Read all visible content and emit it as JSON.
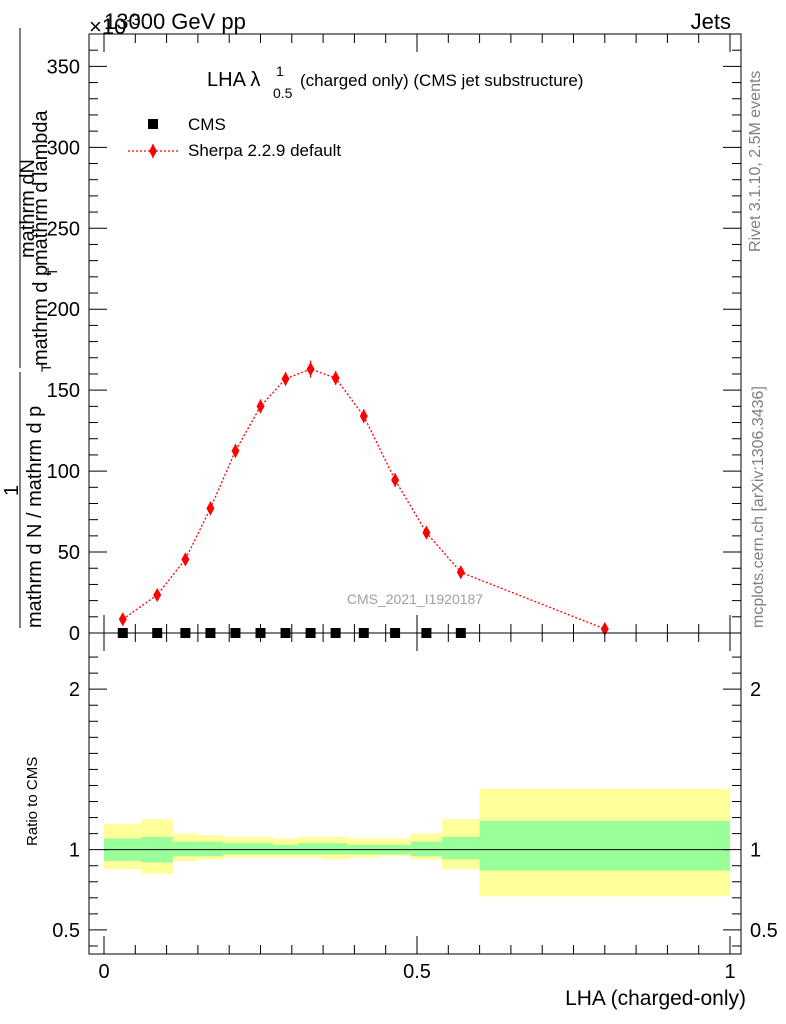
{
  "header": {
    "left": "13000 GeV pp",
    "right": "Jets"
  },
  "side_labels": {
    "rivet": "Rivet 3.1.10,  2.5M events",
    "mcplots": "mcplots.cern.ch [arXiv:1306.3436]"
  },
  "watermark": "CMS_2021_I1920187",
  "colors": {
    "mc": "#ff0000",
    "data": "#000000",
    "band_inner": "#99ff99",
    "band_outer": "#ffff99"
  },
  "chart_data": [
    {
      "type": "line",
      "title_main": "LHA λ",
      "title_sup": "1",
      "title_sub": "0.5",
      "title_rest": "(charged only) (CMS jet substructure)",
      "ylabel_top": "mathrm dN",
      "ylabel_top2": "mathrm d p",
      "ylabel_top_sub": "T",
      "ylabel_top3": " mathrm d lambda",
      "ylabel_one": "1",
      "ylabel_bottom": "mathrm d N / mathrm d p",
      "ylabel_bottom_sub": "T",
      "y_exponent": "×10",
      "y_exponent_power": "-3",
      "ylim": [
        0,
        0.37
      ],
      "yticks": [
        {
          "v": 0,
          "label": "0"
        },
        {
          "v": 0.05,
          "label": "50"
        },
        {
          "v": 0.1,
          "label": "100"
        },
        {
          "v": 0.15,
          "label": "150"
        },
        {
          "v": 0.2,
          "label": "200"
        },
        {
          "v": 0.25,
          "label": "250"
        },
        {
          "v": 0.3,
          "label": "300"
        },
        {
          "v": 0.35,
          "label": "350"
        }
      ],
      "xlim": [
        0,
        1
      ],
      "legend_position": "top-left",
      "series": [
        {
          "name": "CMS",
          "marker": "square",
          "x": [
            0.03,
            0.085,
            0.13,
            0.17,
            0.21,
            0.25,
            0.29,
            0.33,
            0.37,
            0.415,
            0.465,
            0.515,
            0.57
          ],
          "y": [
            0,
            0,
            0,
            0,
            0,
            0,
            0,
            0,
            0,
            0,
            0,
            0,
            0
          ]
        },
        {
          "name": "Sherpa 2.2.9 default",
          "marker": "diamond",
          "x": [
            0.03,
            0.085,
            0.13,
            0.17,
            0.21,
            0.25,
            0.29,
            0.33,
            0.37,
            0.415,
            0.465,
            0.515,
            0.57,
            0.8
          ],
          "y": [
            0.0085,
            0.0235,
            0.0455,
            0.077,
            0.1125,
            0.14,
            0.157,
            0.163,
            0.1575,
            0.134,
            0.0945,
            0.062,
            0.0375,
            0.0025
          ],
          "err": [
            0.002,
            0.002,
            0.002,
            0.003,
            0.003,
            0.003,
            0.003,
            0.004,
            0.003,
            0.003,
            0.003,
            0.002,
            0.002,
            0.001
          ]
        }
      ]
    },
    {
      "type": "area",
      "ylabel": "Ratio to CMS",
      "xlabel": "LHA (charged-only)",
      "xlim": [
        0,
        1
      ],
      "ylim": [
        0.35,
        2.35
      ],
      "xticks": [
        {
          "v": 0,
          "label": "0"
        },
        {
          "v": 0.5,
          "label": "0.5"
        },
        {
          "v": 1,
          "label": "1"
        }
      ],
      "yticks": [
        {
          "v": 0.5,
          "label": "0.5"
        },
        {
          "v": 1,
          "label": "1"
        },
        {
          "v": 2,
          "label": "2"
        }
      ],
      "bands": [
        {
          "x0": 0.0,
          "x1": 0.06,
          "inner": [
            0.93,
            1.07
          ],
          "outer": [
            0.88,
            1.16
          ]
        },
        {
          "x0": 0.06,
          "x1": 0.11,
          "inner": [
            0.92,
            1.08
          ],
          "outer": [
            0.85,
            1.19
          ]
        },
        {
          "x0": 0.11,
          "x1": 0.15,
          "inner": [
            0.96,
            1.05
          ],
          "outer": [
            0.93,
            1.1
          ]
        },
        {
          "x0": 0.15,
          "x1": 0.19,
          "inner": [
            0.96,
            1.05
          ],
          "outer": [
            0.94,
            1.09
          ]
        },
        {
          "x0": 0.19,
          "x1": 0.23,
          "inner": [
            0.97,
            1.04
          ],
          "outer": [
            0.95,
            1.08
          ]
        },
        {
          "x0": 0.23,
          "x1": 0.27,
          "inner": [
            0.97,
            1.04
          ],
          "outer": [
            0.95,
            1.08
          ]
        },
        {
          "x0": 0.27,
          "x1": 0.31,
          "inner": [
            0.97,
            1.03
          ],
          "outer": [
            0.95,
            1.07
          ]
        },
        {
          "x0": 0.31,
          "x1": 0.35,
          "inner": [
            0.97,
            1.04
          ],
          "outer": [
            0.95,
            1.08
          ]
        },
        {
          "x0": 0.35,
          "x1": 0.39,
          "inner": [
            0.97,
            1.04
          ],
          "outer": [
            0.94,
            1.08
          ]
        },
        {
          "x0": 0.39,
          "x1": 0.44,
          "inner": [
            0.97,
            1.03
          ],
          "outer": [
            0.95,
            1.07
          ]
        },
        {
          "x0": 0.44,
          "x1": 0.49,
          "inner": [
            0.97,
            1.03
          ],
          "outer": [
            0.96,
            1.07
          ]
        },
        {
          "x0": 0.49,
          "x1": 0.54,
          "inner": [
            0.96,
            1.05
          ],
          "outer": [
            0.94,
            1.1
          ]
        },
        {
          "x0": 0.54,
          "x1": 0.6,
          "inner": [
            0.94,
            1.08
          ],
          "outer": [
            0.88,
            1.19
          ]
        },
        {
          "x0": 0.6,
          "x1": 1.0,
          "inner": [
            0.87,
            1.18
          ],
          "outer": [
            0.71,
            1.38
          ]
        }
      ]
    }
  ]
}
